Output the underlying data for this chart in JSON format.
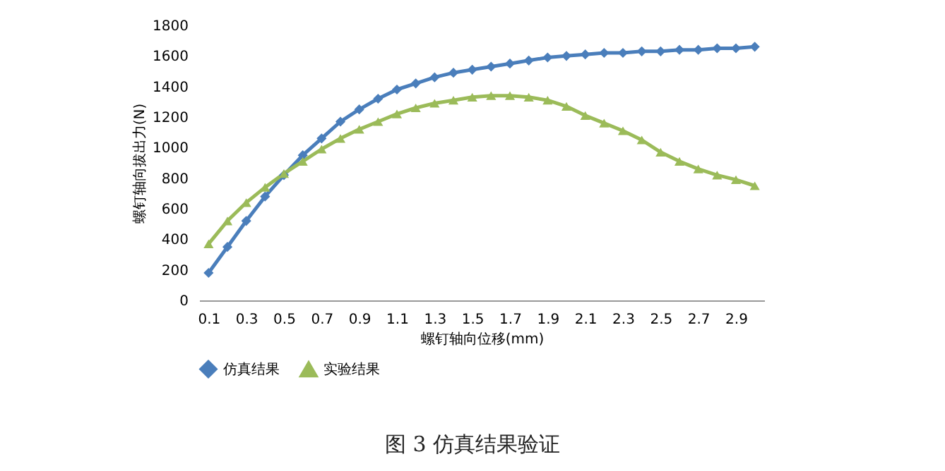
{
  "chart_data": {
    "type": "line",
    "xlabel": "螺钉轴向位移(mm)",
    "ylabel": "螺钉轴向拔出力(N)",
    "categories": [
      "0.1",
      null,
      "0.3",
      null,
      "0.5",
      null,
      "0.7",
      null,
      "0.9",
      null,
      "1.1",
      null,
      "1.3",
      null,
      "1.5",
      null,
      "1.7",
      null,
      "1.9",
      null,
      "2.1",
      null,
      "2.3",
      null,
      "2.5",
      null,
      "2.7",
      null,
      "2.9",
      null
    ],
    "series": [
      {
        "name": "仿真结果",
        "color": "#4a7ebb",
        "marker": "diamond",
        "values": [
          180,
          350,
          520,
          680,
          820,
          950,
          1060,
          1170,
          1250,
          1320,
          1380,
          1420,
          1460,
          1490,
          1510,
          1530,
          1550,
          1570,
          1590,
          1600,
          1610,
          1620,
          1620,
          1630,
          1630,
          1640,
          1640,
          1650,
          1650,
          1660
        ]
      },
      {
        "name": "实验结果",
        "color": "#9bbb59",
        "marker": "triangle",
        "values": [
          370,
          520,
          640,
          740,
          830,
          910,
          990,
          1060,
          1120,
          1170,
          1220,
          1260,
          1290,
          1310,
          1330,
          1340,
          1340,
          1330,
          1310,
          1270,
          1210,
          1160,
          1110,
          1050,
          970,
          910,
          860,
          820,
          790,
          750
        ]
      }
    ],
    "ylim": [
      0,
      1800
    ],
    "yticks": [
      0,
      200,
      400,
      600,
      800,
      1000,
      1200,
      1400,
      1600,
      1800
    ],
    "grid": false,
    "legend": "bottom",
    "annotations": [
      "图 3 仿真结果验证"
    ]
  }
}
